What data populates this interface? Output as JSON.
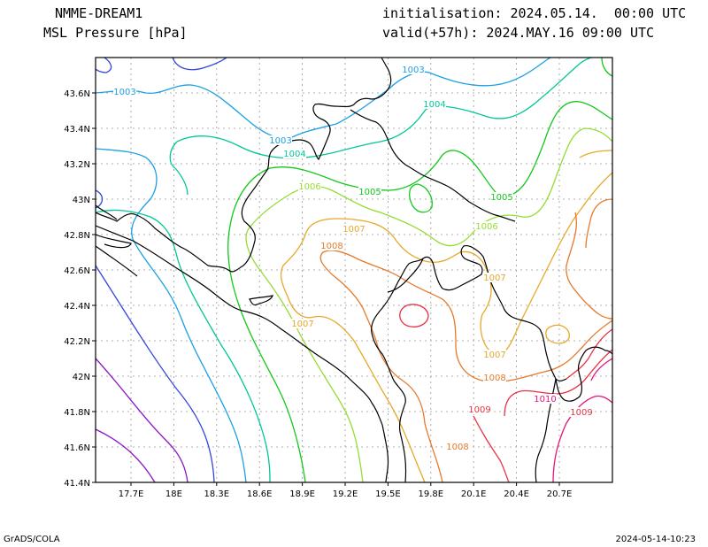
{
  "header": {
    "model": "NMME-DREAM1",
    "field": "MSL Pressure [hPa]",
    "init_line": "initialisation: 2024.05.14.  00:00 UTC",
    "valid_line": "valid(+57h): 2024.MAY.16 09:00 UTC"
  },
  "footer": {
    "left": "GrADS/COLA",
    "right": "2024-05-14-10:23"
  },
  "axes": {
    "x_ticks": [
      "17.7E",
      "18E",
      "18.3E",
      "18.6E",
      "18.9E",
      "19.2E",
      "19.5E",
      "19.8E",
      "20.1E",
      "20.4E",
      "20.7E"
    ],
    "y_ticks": [
      "43.6N",
      "43.4N",
      "43.2N",
      "43N",
      "42.8N",
      "42.6N",
      "42.4N",
      "42.2N",
      "42N",
      "41.8N",
      "41.6N",
      "41.4N"
    ]
  },
  "contour_labels": [
    {
      "text": "1003",
      "color": "#1aa0e6"
    },
    {
      "text": "1003",
      "color": "#1aa0e6"
    },
    {
      "text": "1003",
      "color": "#1aa0e6"
    },
    {
      "text": "1004",
      "color": "#00c896"
    },
    {
      "text": "1004",
      "color": "#00c896"
    },
    {
      "text": "1005",
      "color": "#12c81a"
    },
    {
      "text": "1005",
      "color": "#12c81a"
    },
    {
      "text": "1006",
      "color": "#96dc32"
    },
    {
      "text": "1006",
      "color": "#96dc32"
    },
    {
      "text": "1007",
      "color": "#e6a82a"
    },
    {
      "text": "1007",
      "color": "#e6a82a"
    },
    {
      "text": "1007",
      "color": "#e6a82a"
    },
    {
      "text": "1007",
      "color": "#e6a82a"
    },
    {
      "text": "1008",
      "color": "#e67a2a"
    },
    {
      "text": "1008",
      "color": "#e67a2a"
    },
    {
      "text": "1008",
      "color": "#e67a2a"
    },
    {
      "text": "1009",
      "color": "#e63246"
    },
    {
      "text": "1009",
      "color": "#e63246"
    },
    {
      "text": "1010",
      "color": "#e6147a"
    }
  ]
}
